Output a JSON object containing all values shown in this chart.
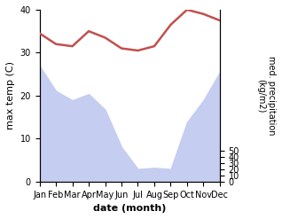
{
  "months": [
    "Jan",
    "Feb",
    "Mar",
    "Apr",
    "May",
    "Jun",
    "Jul",
    "Aug",
    "Sep",
    "Oct",
    "Nov",
    "Dec"
  ],
  "month_indices": [
    0,
    1,
    2,
    3,
    4,
    5,
    6,
    7,
    8,
    9,
    10,
    11
  ],
  "temp": [
    34.5,
    32.0,
    31.5,
    35.0,
    33.5,
    31.0,
    30.5,
    31.5,
    36.5,
    40.0,
    39.0,
    37.5
  ],
  "precip_mm": [
    185,
    145,
    130,
    140,
    115,
    55,
    20,
    22,
    20,
    95,
    130,
    175
  ],
  "temp_color": "#c0504d",
  "precip_fill_color": "#c5cdf0",
  "ylabel_left": "max temp (C)",
  "ylabel_right": "med. precipitation\n(kg/m2)",
  "xlabel": "date (month)",
  "ylim_left": [
    0,
    40
  ],
  "ylim_right": [
    0,
    275
  ],
  "yticks_left": [
    0,
    10,
    20,
    30,
    40
  ],
  "yticks_right": [
    0,
    10,
    20,
    30,
    40,
    50
  ],
  "ytick_right_labels": [
    "0",
    "10",
    "20",
    "30",
    "40",
    "50"
  ],
  "bg_color": "#ffffff",
  "fig_width": 3.18,
  "fig_height": 2.47,
  "dpi": 100
}
